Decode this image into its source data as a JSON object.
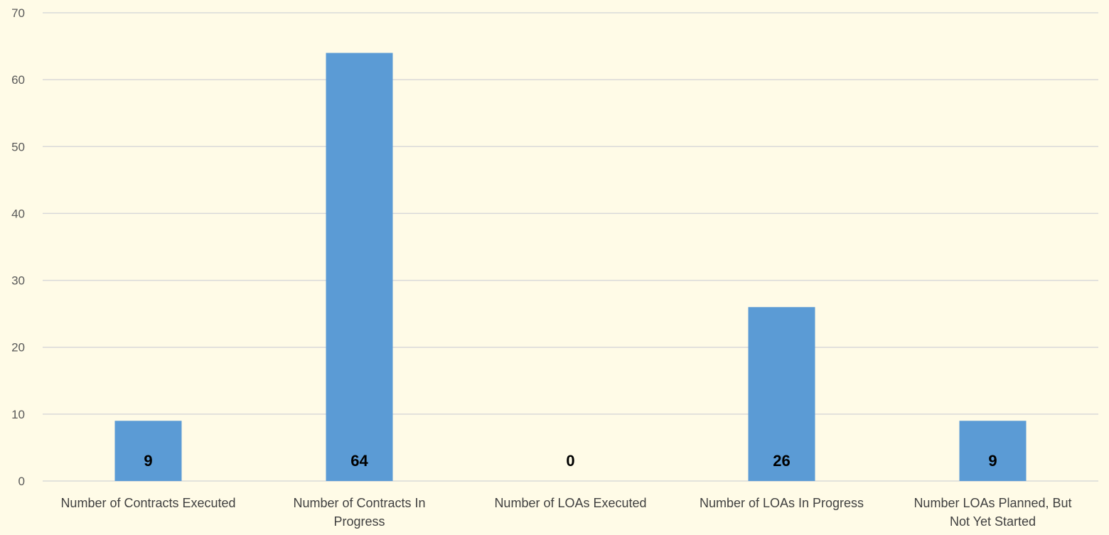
{
  "chart_data": {
    "type": "bar",
    "categories": [
      [
        "Number of Contracts Executed"
      ],
      [
        "Number of Contracts In",
        "Progress"
      ],
      [
        "Number of LOAs Executed"
      ],
      [
        "Number of LOAs In Progress"
      ],
      [
        "Number LOAs Planned, But",
        "Not Yet Started"
      ]
    ],
    "values": [
      9,
      64,
      0,
      26,
      9
    ],
    "data_labels": [
      "9",
      "64",
      "0",
      "26",
      "9"
    ],
    "y_ticks": [
      "0",
      "10",
      "20",
      "30",
      "40",
      "50",
      "60",
      "70"
    ],
    "ylim": [
      0,
      70
    ],
    "title": "",
    "xlabel": "",
    "ylabel": "",
    "grid": true,
    "legend": "none",
    "colors": {
      "background": "#fffbe7",
      "bar": "#5b9bd5",
      "grid": "#d9d9d9",
      "tick_text": "#595959",
      "category_text": "#404040",
      "data_label_text": "#000000"
    }
  }
}
